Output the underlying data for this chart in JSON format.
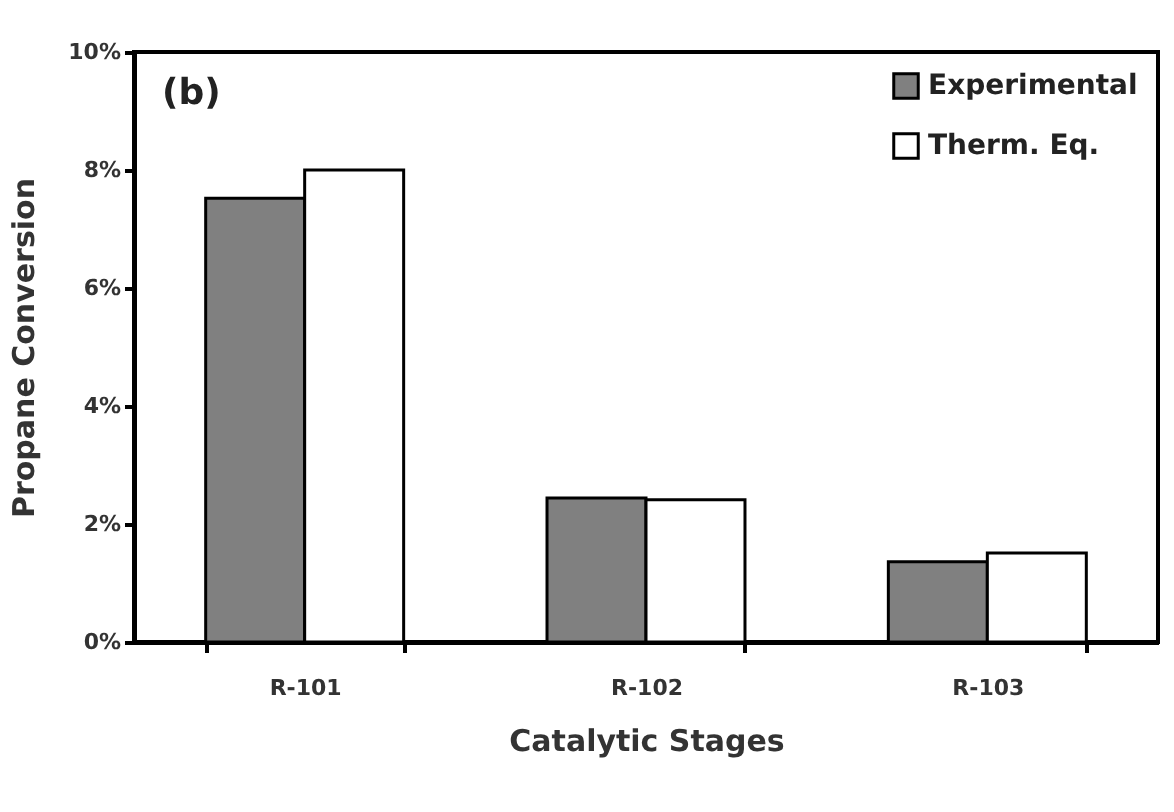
{
  "chart_data": {
    "type": "bar",
    "xlabel": "Catalytic Stages",
    "ylabel": "Propane Conversion",
    "annotations": [
      "(b)"
    ],
    "categories": [
      "R-101",
      "R-102",
      "R-103"
    ],
    "series": [
      {
        "name": "Experimental",
        "color": "#808080",
        "values": [
          7.52,
          2.44,
          1.36
        ]
      },
      {
        "name": "Therm. Eq.",
        "color": "#ffffff",
        "values": [
          8.0,
          2.41,
          1.51
        ]
      }
    ],
    "ylim": [
      0,
      10
    ],
    "yticks": [
      {
        "value": 0,
        "label": "0%"
      },
      {
        "value": 2,
        "label": "2%"
      },
      {
        "value": 4,
        "label": "4%"
      },
      {
        "value": 6,
        "label": "6%"
      },
      {
        "value": 8,
        "label": "8%"
      },
      {
        "value": 10,
        "label": "10%"
      }
    ],
    "grid": false,
    "legend": "top right"
  }
}
